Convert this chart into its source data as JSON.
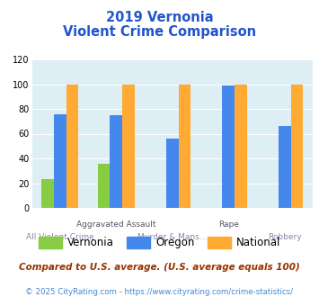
{
  "title_line1": "2019 Vernonia",
  "title_line2": "Violent Crime Comparison",
  "categories": [
    "All Violent Crime",
    "Aggravated Assault",
    "Murder & Mans...",
    "Rape",
    "Robbery"
  ],
  "series": {
    "Vernonia": [
      23,
      36,
      0,
      0,
      0
    ],
    "Oregon": [
      76,
      75,
      56,
      99,
      66
    ],
    "National": [
      100,
      100,
      100,
      100,
      100
    ]
  },
  "colors": {
    "Vernonia": "#88cc44",
    "Oregon": "#4488ee",
    "National": "#ffaa33"
  },
  "ylim": [
    0,
    120
  ],
  "yticks": [
    0,
    20,
    40,
    60,
    80,
    100,
    120
  ],
  "footnote": "Compared to U.S. average. (U.S. average equals 100)",
  "copyright": "© 2025 CityRating.com - https://www.cityrating.com/crime-statistics/",
  "title_color": "#2255cc",
  "footnote_color": "#993300",
  "copyright_color": "#4488cc",
  "plot_bg": "#ddeef5"
}
